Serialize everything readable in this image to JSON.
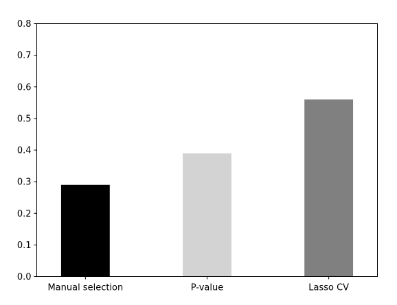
{
  "chart_data": {
    "type": "bar",
    "categories": [
      "Manual selection",
      "P-value",
      "Lasso CV"
    ],
    "values": [
      0.29,
      0.39,
      0.56
    ],
    "colors": [
      "#000000",
      "#d3d3d3",
      "#808080"
    ],
    "title": "",
    "xlabel": "",
    "ylabel": "",
    "ylim": [
      0,
      0.8
    ],
    "yticks": [
      "0.0",
      "0.1",
      "0.2",
      "0.3",
      "0.4",
      "0.5",
      "0.6",
      "0.7",
      "0.8"
    ],
    "grid": false,
    "legend": "none"
  }
}
